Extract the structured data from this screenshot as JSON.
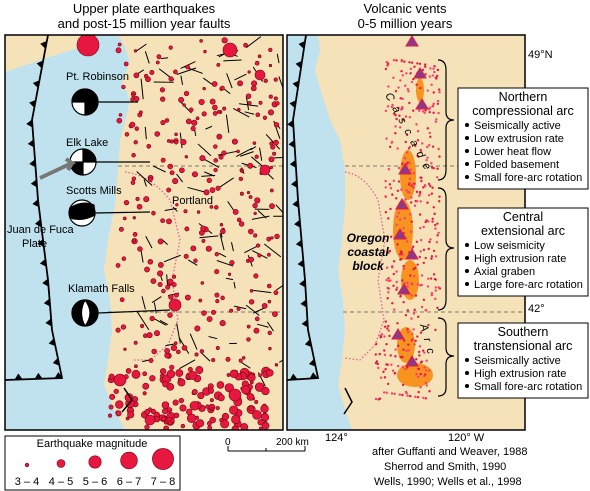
{
  "left_title": [
    "Upper plate earthquakes",
    "and post-15 million year faults"
  ],
  "right_title": [
    "Volcanic vents",
    "0-5 million years"
  ],
  "places": [
    "Pt. Robinson",
    "Elk Lake",
    "Scotts Mills",
    "Portland",
    "Klamath Falls"
  ],
  "plate": [
    "Juan de Fuca",
    "Plate"
  ],
  "latitudes": [
    "49°N",
    "42°"
  ],
  "longitudes": [
    "124°",
    "120° W"
  ],
  "arc_names": [
    "Cascade",
    "Arc"
  ],
  "block_label": [
    "Oregon",
    "coastal",
    "block"
  ],
  "arc_boxes": [
    {
      "title": [
        "Northern",
        "compressional arc"
      ],
      "items": [
        "Seismically active",
        "Low extrusion rate",
        "Lower heat flow",
        "Folded basement",
        "Small fore-arc rotation"
      ]
    },
    {
      "title": [
        "Central",
        "extensional arc"
      ],
      "items": [
        "Low seismicity",
        "High extrusion rate",
        "Axial graben",
        "Large fore-arc rotation"
      ]
    },
    {
      "title": [
        "Southern",
        "transtensional arc"
      ],
      "items": [
        "Seismically active",
        "High extrusion rate",
        "Small fore-arc rotation"
      ]
    }
  ],
  "legend": {
    "title": "Earthquake magnitude",
    "classes": [
      "3 – 4",
      "4 – 5",
      "5 – 6",
      "6 – 7",
      "7 – 8"
    ]
  },
  "scale": [
    "0",
    "200 km"
  ],
  "credits": [
    "after Guffanti and Weaver, 1988",
    "Sherrod and Smith, 1990",
    "Wells, 1990; Wells et al., 1998"
  ]
}
